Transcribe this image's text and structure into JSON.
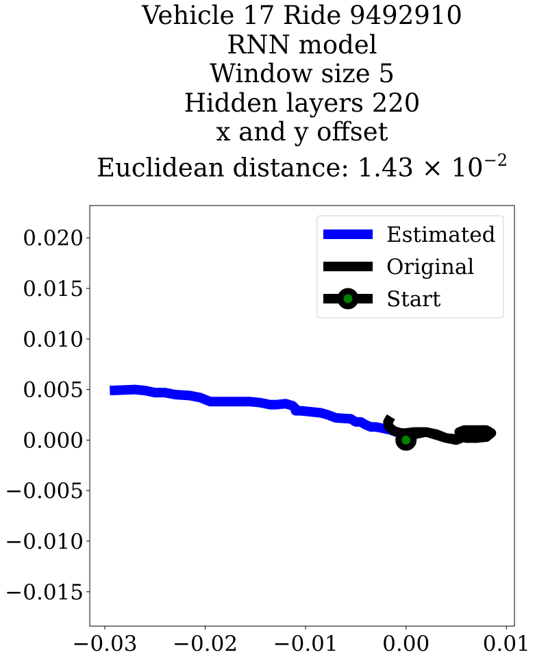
{
  "chart_data": {
    "type": "line",
    "title_lines": [
      "Vehicle 17 Ride 9492910",
      "RNN model",
      "Window size 5",
      "Hidden layers 220",
      "x and y offset",
      "Euclidean distance: 1.43 × 10",
      "−2"
    ],
    "xlabel": "",
    "ylabel": "",
    "xlim": [
      -0.0315,
      0.0108
    ],
    "ylim": [
      -0.0184,
      0.0232
    ],
    "x_ticks": [
      -0.03,
      -0.02,
      -0.01,
      0.0,
      0.01
    ],
    "x_tick_labels": [
      "−0.03",
      "−0.02",
      "−0.01",
      "0.00",
      "0.01"
    ],
    "y_ticks": [
      0.02,
      0.015,
      0.01,
      0.005,
      0.0,
      -0.005,
      -0.01,
      -0.015
    ],
    "y_tick_labels": [
      "0.020",
      "0.015",
      "0.010",
      "0.005",
      "0.000",
      "−0.005",
      "−0.010",
      "−0.015"
    ],
    "grid": false,
    "legend_position": "top-right",
    "series": [
      {
        "name": "Estimated",
        "color": "#0000ff",
        "x": [
          -0.0295,
          -0.027,
          -0.026,
          -0.025,
          -0.024,
          -0.023,
          -0.0215,
          -0.0205,
          -0.0195,
          -0.0175,
          -0.0155,
          -0.0145,
          -0.0135,
          -0.013,
          -0.012,
          -0.0113,
          -0.011,
          -0.011,
          -0.0105,
          -0.0095,
          -0.0085,
          -0.0078,
          -0.007,
          -0.0055,
          -0.005,
          -0.0045,
          -0.004,
          -0.0035,
          -0.003,
          -0.0025,
          -0.002,
          -0.0015,
          -0.001,
          0.0
        ],
        "y": [
          0.0049,
          0.005,
          0.0049,
          0.0047,
          0.0047,
          0.0045,
          0.0044,
          0.0042,
          0.0038,
          0.0038,
          0.0038,
          0.0037,
          0.0035,
          0.0035,
          0.0036,
          0.0034,
          0.0031,
          0.0029,
          0.0029,
          0.0028,
          0.0027,
          0.0025,
          0.0022,
          0.0021,
          0.0018,
          0.0018,
          0.0015,
          0.0013,
          0.0013,
          0.0012,
          0.0011,
          0.001,
          0.0008,
          0.0005
        ]
      },
      {
        "name": "Original",
        "color": "#000000",
        "x": [
          -0.0015,
          -0.0018,
          -0.0017,
          -0.0012,
          -0.0005,
          0.0,
          0.0008,
          0.002,
          0.003,
          0.004,
          0.005,
          0.0055,
          0.0053,
          0.0058,
          0.007,
          0.008,
          0.0085,
          0.008,
          0.007,
          0.006,
          0.0055,
          0.0058,
          0.006,
          0.005,
          0.004,
          0.003,
          0.002,
          0.001,
          0.0
        ],
        "y": [
          0.0023,
          0.0018,
          0.0013,
          0.0009,
          0.0007,
          0.0007,
          0.0008,
          0.0008,
          0.0005,
          0.0002,
          0.0001,
          0.0002,
          0.0008,
          0.001,
          0.001,
          0.001,
          0.0007,
          0.0003,
          0.0002,
          0.0002,
          0.0004,
          0.0007,
          0.0004,
          0.0,
          0.0002,
          0.0006,
          0.0008,
          0.0006,
          0.0002
        ]
      }
    ],
    "start": {
      "name": "Start",
      "x": 0.0,
      "y": 0.0,
      "edge_color": "#000000",
      "fill_color": "#008000"
    },
    "legend": [
      {
        "label": "Estimated",
        "color": "#0000ff",
        "marker": false
      },
      {
        "label": "Original",
        "color": "#000000",
        "marker": false
      },
      {
        "label": "Start",
        "color": "#000000",
        "marker": true,
        "marker_fill": "#008000"
      }
    ]
  }
}
